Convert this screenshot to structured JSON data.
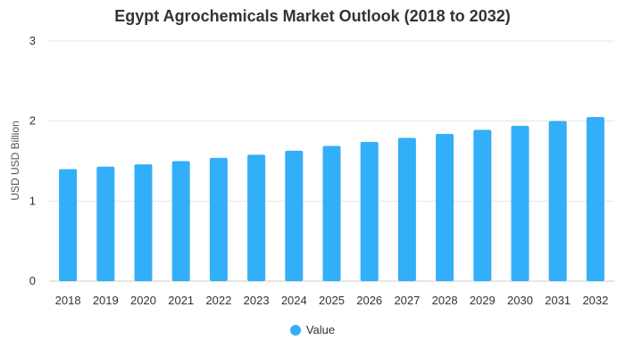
{
  "chart_data": {
    "type": "bar",
    "title": "Egypt Agrochemicals Market Outlook (2018 to 2032)",
    "xlabel": "",
    "ylabel": "USD USD Billion",
    "categories": [
      "2018",
      "2019",
      "2020",
      "2021",
      "2022",
      "2023",
      "2024",
      "2025",
      "2026",
      "2027",
      "2028",
      "2029",
      "2030",
      "2031",
      "2032"
    ],
    "series": [
      {
        "name": "Value",
        "color": "#33aef8",
        "values": [
          1.4,
          1.43,
          1.46,
          1.5,
          1.54,
          1.58,
          1.63,
          1.69,
          1.74,
          1.79,
          1.84,
          1.89,
          1.94,
          2.0,
          2.05
        ]
      }
    ],
    "ylim": [
      0,
      3
    ],
    "yticks": [
      "0",
      "1",
      "2",
      "3"
    ],
    "grid": true,
    "legend_position": "bottom-center"
  }
}
